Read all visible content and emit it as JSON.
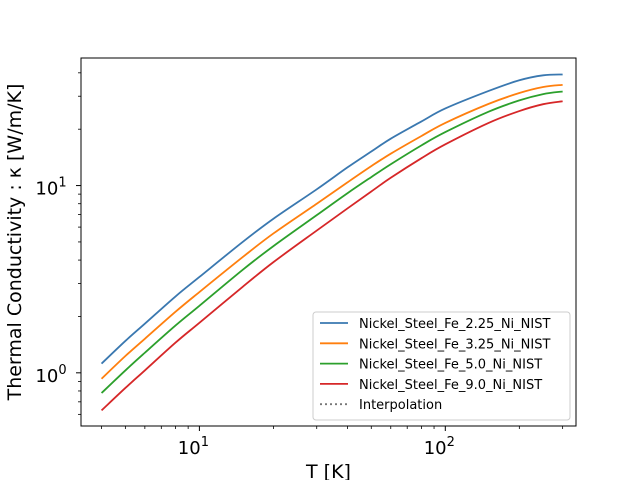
{
  "chart_data": {
    "type": "line",
    "xlabel": "T [K]",
    "ylabel": "Thermal Conductivity : κ [W/m/K]",
    "xscale": "log",
    "yscale": "log",
    "xlim": [
      3.3,
      340
    ],
    "ylim": [
      0.52,
      48
    ],
    "x_ticks": [
      {
        "value": 10,
        "base": "10",
        "exp": "1"
      },
      {
        "value": 100,
        "base": "10",
        "exp": "2"
      }
    ],
    "y_ticks": [
      {
        "value": 1,
        "base": "10",
        "exp": "0"
      },
      {
        "value": 10,
        "base": "10",
        "exp": "1"
      }
    ],
    "grid": false,
    "legend_position": "lower right",
    "x": [
      4,
      5,
      6,
      8,
      10,
      15,
      20,
      30,
      40,
      50,
      60,
      80,
      100,
      150,
      200,
      250,
      300
    ],
    "series": [
      {
        "name": "Nickel_Steel_Fe_2.25_Ni_NIST",
        "color": "#3a78b0",
        "values": [
          1.12,
          1.48,
          1.83,
          2.56,
          3.25,
          5.0,
          6.65,
          9.55,
          12.5,
          15.2,
          17.8,
          22.0,
          25.8,
          32.0,
          36.5,
          38.8,
          39.2
        ]
      },
      {
        "name": "Nickel_Steel_Fe_3.25_Ni_NIST",
        "color": "#ff7f0e",
        "values": [
          0.93,
          1.23,
          1.52,
          2.12,
          2.7,
          4.15,
          5.55,
          8.0,
          10.4,
          12.7,
          14.8,
          18.4,
          21.6,
          27.3,
          31.2,
          33.6,
          34.5
        ]
      },
      {
        "name": "Nickel_Steel_Fe_5.0_Ni_NIST",
        "color": "#2ca02c",
        "values": [
          0.78,
          1.03,
          1.28,
          1.79,
          2.28,
          3.55,
          4.75,
          6.95,
          9.1,
          11.1,
          13.0,
          16.4,
          19.3,
          24.8,
          28.5,
          30.8,
          31.8
        ]
      },
      {
        "name": "Nickel_Steel_Fe_9.0_Ni_NIST",
        "color": "#d62728",
        "values": [
          0.63,
          0.83,
          1.03,
          1.45,
          1.85,
          2.88,
          3.9,
          5.75,
          7.55,
          9.3,
          11.0,
          14.0,
          16.6,
          21.6,
          25.0,
          27.2,
          28.2
        ]
      }
    ],
    "interpolation_label": "Interpolation",
    "interpolation_color": "#777777"
  }
}
